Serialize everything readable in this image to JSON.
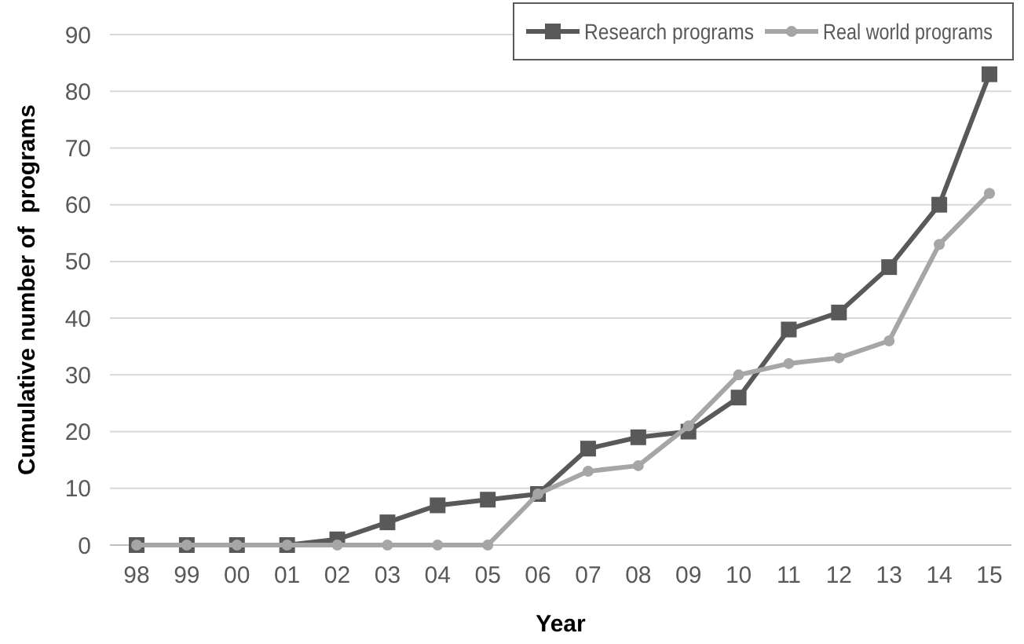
{
  "chart_data": {
    "type": "line",
    "xlabel": "Year",
    "ylabel": "Cumulative number of  programs",
    "categories": [
      "98",
      "99",
      "00",
      "01",
      "02",
      "03",
      "04",
      "05",
      "06",
      "07",
      "08",
      "09",
      "10",
      "11",
      "12",
      "13",
      "14",
      "15"
    ],
    "series": [
      {
        "name": "Research programs",
        "color": "#595959",
        "marker": "square",
        "values": [
          0,
          0,
          0,
          0,
          1,
          4,
          7,
          8,
          9,
          17,
          19,
          20,
          26,
          38,
          41,
          49,
          60,
          83
        ]
      },
      {
        "name": "Real world programs",
        "color": "#a6a6a6",
        "marker": "circle",
        "values": [
          0,
          0,
          0,
          0,
          0,
          0,
          0,
          0,
          9,
          13,
          14,
          21,
          30,
          32,
          33,
          36,
          53,
          62
        ]
      }
    ],
    "ylim": [
      0,
      90
    ],
    "yticks": [
      0,
      10,
      20,
      30,
      40,
      50,
      60,
      70,
      80,
      90
    ],
    "grid": "y",
    "legend": "top right"
  }
}
